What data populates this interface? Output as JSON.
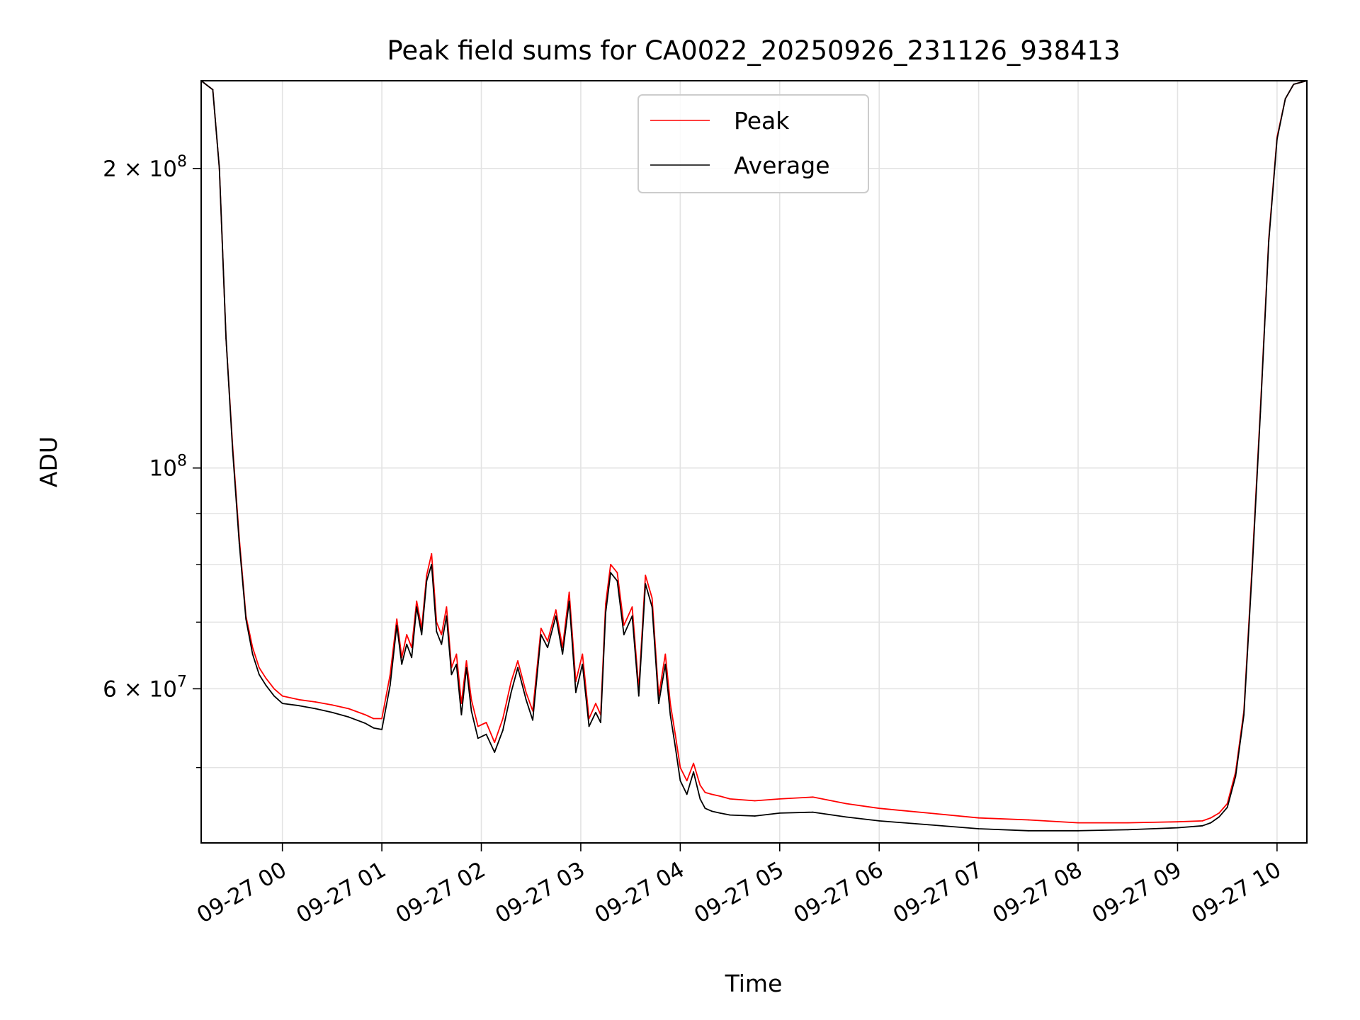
{
  "chart_data": {
    "type": "line",
    "title": "Peak field sums for CA0022_20250926_231126_938413",
    "xlabel": "Time",
    "ylabel": "ADU",
    "yscale": "log",
    "xlim": [
      "09-26 23:11",
      "09-27 10:18"
    ],
    "ylim": [
      42000000,
      245000000
    ],
    "grid": true,
    "legend_position": "top-center",
    "x_ticks": [
      "09-27 00",
      "09-27 01",
      "09-27 02",
      "09-27 03",
      "09-27 04",
      "09-27 05",
      "09-27 06",
      "09-27 07",
      "09-27 08",
      "09-27 09",
      "09-27 10"
    ],
    "y_major_ticks": [
      {
        "value": 200000000,
        "mantissa": "2",
        "exponent": "8"
      },
      {
        "value": 100000000,
        "mantissa": "",
        "exponent": "8"
      },
      {
        "value": 60000000,
        "mantissa": "6",
        "exponent": "7"
      }
    ],
    "y_minor_ticks": [
      50000000,
      70000000,
      80000000,
      90000000
    ],
    "x": [
      "09-26 23:11",
      "09-26 23:18",
      "09-26 23:22",
      "09-26 23:26",
      "09-26 23:30",
      "09-26 23:34",
      "09-26 23:38",
      "09-26 23:42",
      "09-26 23:46",
      "09-26 23:50",
      "09-26 23:55",
      "09-27 00:00",
      "09-27 00:10",
      "09-27 00:20",
      "09-27 00:30",
      "09-27 00:40",
      "09-27 00:50",
      "09-27 00:55",
      "09-27 01:00",
      "09-27 01:05",
      "09-27 01:09",
      "09-27 01:12",
      "09-27 01:15",
      "09-27 01:18",
      "09-27 01:21",
      "09-27 01:24",
      "09-27 01:27",
      "09-27 01:30",
      "09-27 01:33",
      "09-27 01:36",
      "09-27 01:39",
      "09-27 01:42",
      "09-27 01:45",
      "09-27 01:48",
      "09-27 01:51",
      "09-27 01:54",
      "09-27 01:58",
      "09-27 02:03",
      "09-27 02:08",
      "09-27 02:13",
      "09-27 02:18",
      "09-27 02:22",
      "09-27 02:27",
      "09-27 02:31",
      "09-27 02:36",
      "09-27 02:40",
      "09-27 02:45",
      "09-27 02:49",
      "09-27 02:53",
      "09-27 02:57",
      "09-27 03:01",
      "09-27 03:05",
      "09-27 03:09",
      "09-27 03:12",
      "09-27 03:15",
      "09-27 03:18",
      "09-27 03:22",
      "09-27 03:26",
      "09-27 03:31",
      "09-27 03:35",
      "09-27 03:39",
      "09-27 03:43",
      "09-27 03:47",
      "09-27 03:51",
      "09-27 03:54",
      "09-27 03:57",
      "09-27 04:00",
      "09-27 04:04",
      "09-27 04:08",
      "09-27 04:12",
      "09-27 04:15",
      "09-27 04:19",
      "09-27 04:24",
      "09-27 04:30",
      "09-27 04:45",
      "09-27 05:00",
      "09-27 05:20",
      "09-27 05:40",
      "09-27 06:00",
      "09-27 06:30",
      "09-27 07:00",
      "09-27 07:30",
      "09-27 08:00",
      "09-27 08:30",
      "09-27 09:00",
      "09-27 09:15",
      "09-27 09:20",
      "09-27 09:25",
      "09-27 09:30",
      "09-27 09:35",
      "09-27 09:40",
      "09-27 09:45",
      "09-27 09:50",
      "09-27 09:55",
      "09-27 10:00",
      "09-27 10:05",
      "09-27 10:10",
      "09-27 10:18"
    ],
    "series": [
      {
        "name": "Peak",
        "color": "#ff0000",
        "values": [
          245000000,
          240000000,
          200000000,
          135000000,
          105000000,
          85000000,
          71000000,
          66000000,
          63000000,
          61500000,
          60000000,
          59000000,
          58500000,
          58200000,
          57800000,
          57300000,
          56500000,
          56000000,
          56000000,
          62000000,
          70500000,
          64500000,
          68000000,
          66000000,
          73500000,
          69000000,
          78000000,
          82000000,
          70000000,
          68000000,
          72500000,
          63000000,
          65000000,
          58000000,
          64000000,
          58500000,
          55000000,
          55500000,
          53000000,
          56000000,
          61000000,
          64000000,
          59500000,
          57000000,
          69000000,
          67000000,
          72000000,
          66000000,
          75000000,
          61000000,
          65000000,
          56000000,
          58000000,
          56500000,
          73000000,
          80000000,
          78500000,
          69500000,
          72500000,
          60000000,
          78000000,
          74000000,
          59000000,
          65000000,
          58000000,
          54000000,
          50000000,
          48500000,
          50500000,
          48000000,
          47200000,
          47000000,
          46800000,
          46500000,
          46300000,
          46500000,
          46700000,
          46000000,
          45500000,
          45000000,
          44500000,
          44300000,
          44000000,
          44000000,
          44100000,
          44200000,
          44500000,
          45000000,
          46000000,
          49500000,
          57000000,
          80000000,
          115000000,
          170000000,
          215000000,
          235000000,
          243000000,
          245000000
        ]
      },
      {
        "name": "Average",
        "color": "#000000",
        "values": [
          245000000,
          240000000,
          200000000,
          135000000,
          104000000,
          84000000,
          70500000,
          65000000,
          62000000,
          60500000,
          59000000,
          58000000,
          57700000,
          57300000,
          56800000,
          56200000,
          55400000,
          54800000,
          54600000,
          60500000,
          69500000,
          63500000,
          66500000,
          64500000,
          72500000,
          68000000,
          77000000,
          80000000,
          68500000,
          66500000,
          71000000,
          62000000,
          63500000,
          56500000,
          63000000,
          57000000,
          53500000,
          54000000,
          51800000,
          54500000,
          59500000,
          63000000,
          58500000,
          55800000,
          68000000,
          66000000,
          71000000,
          65000000,
          73500000,
          59500000,
          63500000,
          55000000,
          56800000,
          55500000,
          71500000,
          78500000,
          77000000,
          68000000,
          71000000,
          59000000,
          76500000,
          72500000,
          58000000,
          63500000,
          56500000,
          52500000,
          48500000,
          47000000,
          49500000,
          46500000,
          45500000,
          45200000,
          45000000,
          44800000,
          44700000,
          45000000,
          45100000,
          44600000,
          44200000,
          43800000,
          43400000,
          43200000,
          43200000,
          43300000,
          43500000,
          43700000,
          44000000,
          44600000,
          45600000,
          49000000,
          56500000,
          79000000,
          114000000,
          169000000,
          214000000,
          235000000,
          243000000,
          245000000
        ]
      }
    ]
  }
}
